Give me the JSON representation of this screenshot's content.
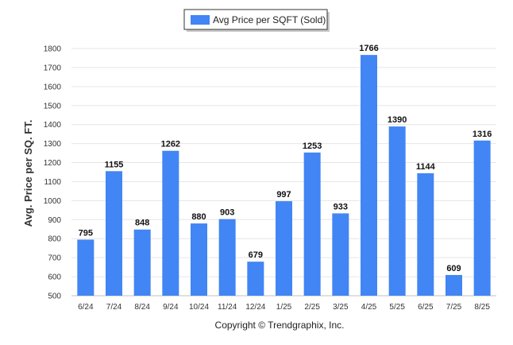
{
  "chart_data": {
    "type": "bar",
    "categories": [
      "6/24",
      "7/24",
      "8/24",
      "9/24",
      "10/24",
      "11/24",
      "12/24",
      "1/25",
      "2/25",
      "3/25",
      "4/25",
      "5/25",
      "6/25",
      "7/25",
      "8/25"
    ],
    "series": [
      {
        "name": "Avg Price per SQFT (Sold)",
        "color": "#4285f4",
        "values": [
          795,
          1155,
          848,
          1262,
          880,
          903,
          679,
          997,
          1253,
          933,
          1766,
          1390,
          1144,
          609,
          1316
        ]
      }
    ],
    "ylabel": "Avg. Price per SQ. FT.",
    "ylim": [
      500,
      1800
    ],
    "yticks": [
      500,
      600,
      700,
      800,
      900,
      1000,
      1100,
      1200,
      1300,
      1400,
      1500,
      1600,
      1700,
      1800
    ],
    "grid": true,
    "legend_position": "top-center",
    "data_labels": true
  },
  "footer": "Copyright © Trendgraphix, Inc."
}
